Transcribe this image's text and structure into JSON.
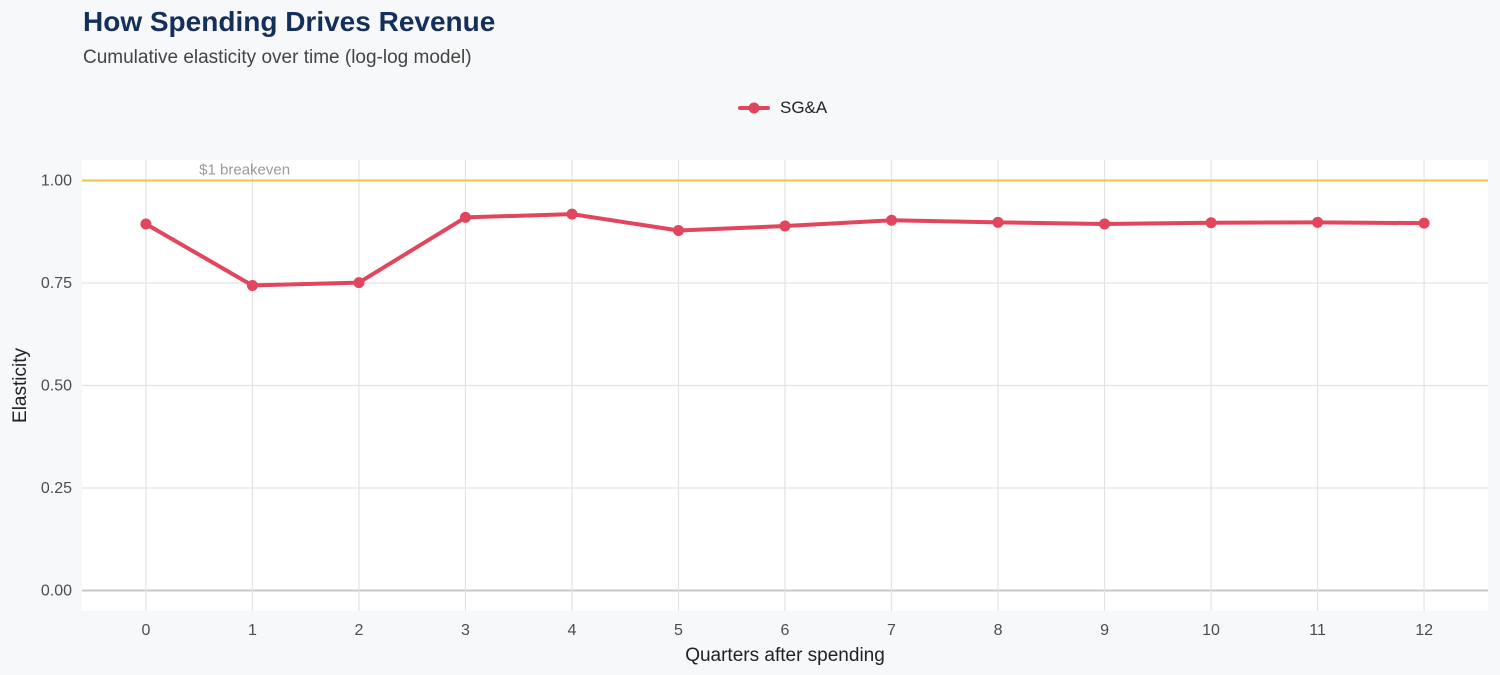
{
  "header": {
    "title": "How Spending Drives Revenue",
    "subtitle": "Cumulative elasticity over time (log-log model)"
  },
  "colors": {
    "series": "#e2455e",
    "reference_line": "#f2c94c",
    "title": "#14305a",
    "grid": "#e3e3e3",
    "panel": "#ffffff"
  },
  "chart_data": {
    "type": "line",
    "title": "How Spending Drives Revenue",
    "subtitle": "Cumulative elasticity over time (log-log model)",
    "xlabel": "Quarters after spending",
    "ylabel": "Elasticity",
    "x": [
      0,
      1,
      2,
      3,
      4,
      5,
      6,
      7,
      8,
      9,
      10,
      11,
      12
    ],
    "x_tick_labels": [
      "0",
      "1",
      "2",
      "3",
      "4",
      "5",
      "6",
      "7",
      "8",
      "9",
      "10",
      "11",
      "12"
    ],
    "y_ticks": [
      0,
      0.25,
      0.5,
      0.75,
      1.0
    ],
    "y_tick_labels": [
      "0.00",
      "0.25",
      "0.50",
      "0.75",
      "1.00"
    ],
    "xlim": [
      -0.6,
      12.6
    ],
    "ylim": [
      -0.05,
      1.05
    ],
    "grid": true,
    "legend_position": "top-center",
    "series": [
      {
        "name": "SG&A",
        "values": [
          0.894,
          0.744,
          0.751,
          0.91,
          0.918,
          0.878,
          0.889,
          0.903,
          0.898,
          0.894,
          0.897,
          0.898,
          0.896
        ]
      }
    ],
    "reference_line": {
      "y": 1.0,
      "label": "$1 breakeven"
    }
  }
}
